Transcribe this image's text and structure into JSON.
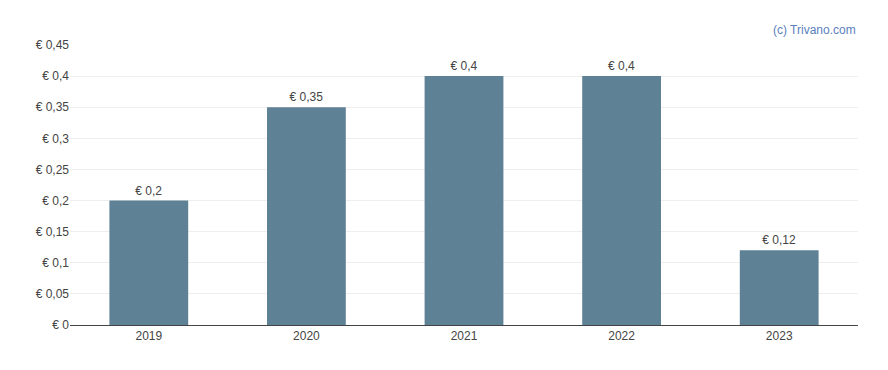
{
  "chart_data": {
    "type": "bar",
    "categories": [
      "2019",
      "2020",
      "2021",
      "2022",
      "2023"
    ],
    "values": [
      0.2,
      0.35,
      0.4,
      0.4,
      0.12
    ],
    "value_labels": [
      "€ 0,2",
      "€ 0,35",
      "€ 0,4",
      "€ 0,4",
      "€ 0,12"
    ],
    "data_labels": true,
    "color": "#5f8196",
    "ylim": [
      0,
      0.45
    ],
    "yticks": [
      {
        "value": 0,
        "label": "€ 0"
      },
      {
        "value": 0.05,
        "label": "€ 0,05"
      },
      {
        "value": 0.1,
        "label": "€ 0,1"
      },
      {
        "value": 0.15,
        "label": "€ 0,15"
      },
      {
        "value": 0.2,
        "label": "€ 0,2"
      },
      {
        "value": 0.25,
        "label": "€ 0,25"
      },
      {
        "value": 0.3,
        "label": "€ 0,3"
      },
      {
        "value": 0.35,
        "label": "€ 0,35"
      },
      {
        "value": 0.4,
        "label": "€ 0,4"
      },
      {
        "value": 0.45,
        "label": "€ 0,45"
      }
    ],
    "grid": true,
    "annotations": [
      {
        "text": "(c) Trivano.com",
        "color": "#5b7fbf"
      }
    ]
  }
}
